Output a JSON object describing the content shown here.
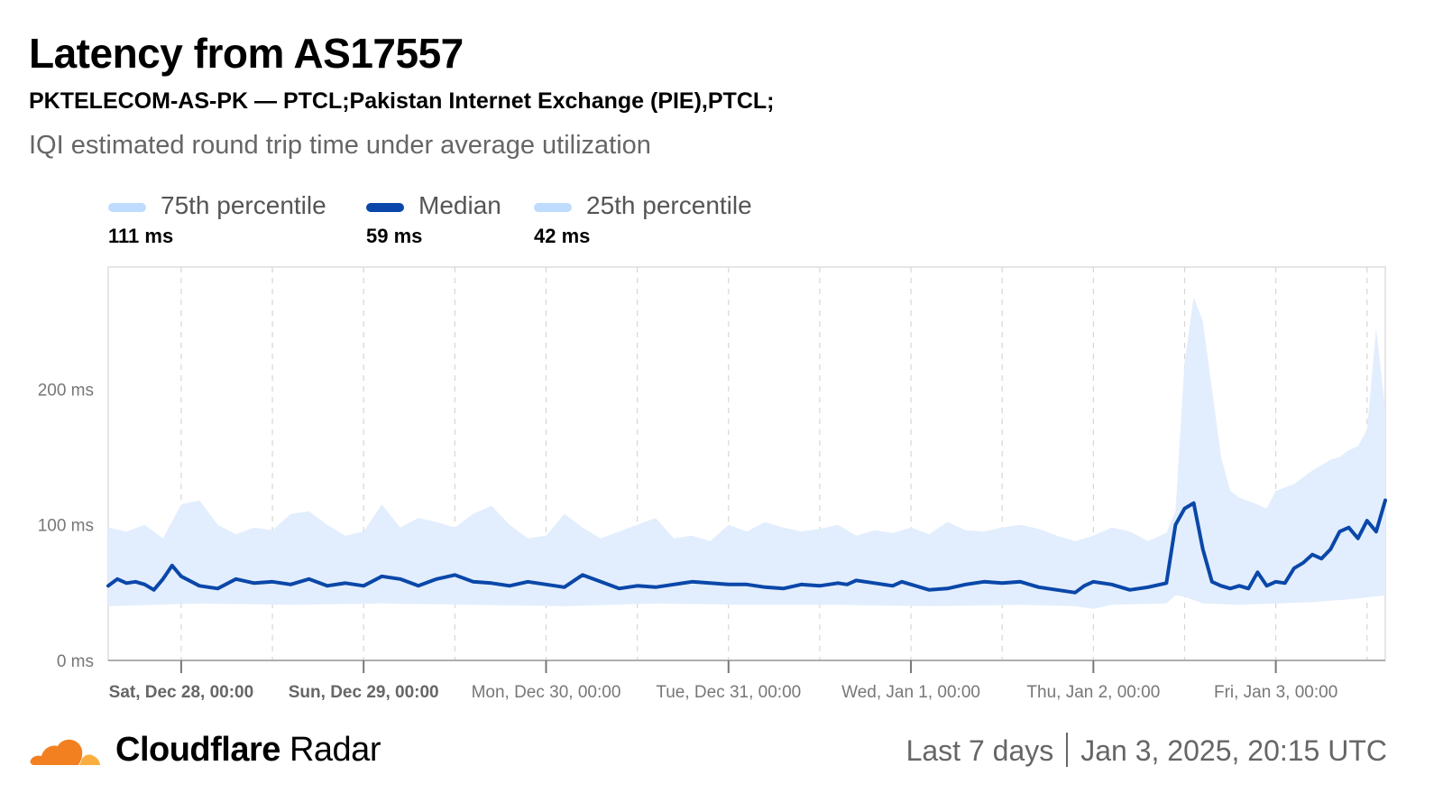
{
  "header": {
    "title": "Latency from AS17557",
    "subtitle": "PKTELECOM-AS-PK — PTCL;Pakistan Internet Exchange (PIE),PTCL;",
    "description": "IQI estimated round trip time under average utilization"
  },
  "legend": [
    {
      "label": "75th percentile",
      "value": "111 ms",
      "color": "#bfdcff"
    },
    {
      "label": "Median",
      "value": "59 ms",
      "color": "#0a47a9"
    },
    {
      "label": "25th percentile",
      "value": "42 ms",
      "color": "#bfdcff"
    }
  ],
  "footer": {
    "brand_bold": "Cloudflare",
    "brand_light": "Radar",
    "range": "Last 7 days",
    "timestamp": "Jan 3, 2025, 20:15 UTC"
  },
  "colors": {
    "band": "#e2eefd",
    "median": "#0a47a9",
    "grid": "#d6d6d6",
    "logo_orange": "#f38020",
    "logo_light": "#faae40"
  },
  "chart_data": {
    "type": "area",
    "unit": "ms",
    "ylim": [
      0,
      290
    ],
    "y_ticks": [
      0,
      100,
      200
    ],
    "y_tick_labels": [
      "0 ms",
      "100 ms",
      "200 ms"
    ],
    "x_ticks": [
      {
        "label": "Sat, Dec 28, 00:00",
        "day": 0.4,
        "bold": true
      },
      {
        "label": "Sun, Dec 29, 00:00",
        "day": 1.4,
        "bold": true
      },
      {
        "label": "Mon, Dec 30, 00:00",
        "day": 2.4,
        "bold": false
      },
      {
        "label": "Tue, Dec 31, 00:00",
        "day": 3.4,
        "bold": false
      },
      {
        "label": "Wed, Jan 1, 00:00",
        "day": 4.4,
        "bold": false
      },
      {
        "label": "Thu, Jan 2, 00:00",
        "day": 5.4,
        "bold": false
      },
      {
        "label": "Fri, Jan 3, 00:00",
        "day": 6.4,
        "bold": false
      }
    ],
    "x_domain_days": [
      0,
      7.0
    ],
    "series": [
      {
        "name": "75th percentile",
        "x": [
          0,
          0.1,
          0.2,
          0.3,
          0.4,
          0.5,
          0.6,
          0.7,
          0.8,
          0.9,
          1.0,
          1.1,
          1.2,
          1.3,
          1.4,
          1.5,
          1.6,
          1.7,
          1.8,
          1.9,
          2.0,
          2.1,
          2.2,
          2.3,
          2.4,
          2.5,
          2.6,
          2.7,
          2.8,
          2.9,
          3.0,
          3.1,
          3.2,
          3.3,
          3.4,
          3.5,
          3.6,
          3.7,
          3.8,
          3.9,
          4.0,
          4.1,
          4.2,
          4.3,
          4.4,
          4.5,
          4.6,
          4.7,
          4.8,
          4.9,
          5.0,
          5.1,
          5.2,
          5.3,
          5.4,
          5.5,
          5.6,
          5.7,
          5.8,
          5.85,
          5.9,
          5.95,
          6.0,
          6.05,
          6.1,
          6.15,
          6.2,
          6.3,
          6.35,
          6.4,
          6.5,
          6.6,
          6.7,
          6.75,
          6.8,
          6.85,
          6.9,
          6.95,
          7.0
        ],
        "values": [
          98,
          95,
          100,
          90,
          115,
          118,
          100,
          93,
          98,
          96,
          108,
          110,
          100,
          92,
          95,
          115,
          98,
          105,
          102,
          98,
          108,
          114,
          100,
          90,
          92,
          108,
          98,
          90,
          95,
          100,
          105,
          90,
          92,
          88,
          100,
          95,
          102,
          98,
          95,
          97,
          100,
          92,
          96,
          94,
          98,
          93,
          102,
          96,
          95,
          98,
          100,
          97,
          92,
          88,
          92,
          98,
          95,
          88,
          94,
          110,
          220,
          268,
          250,
          200,
          150,
          125,
          120,
          115,
          112,
          125,
          130,
          140,
          148,
          150,
          155,
          158,
          170,
          245,
          185
        ]
      },
      {
        "name": "Median",
        "x": [
          0,
          0.05,
          0.1,
          0.15,
          0.2,
          0.25,
          0.3,
          0.35,
          0.4,
          0.5,
          0.6,
          0.7,
          0.8,
          0.9,
          1.0,
          1.1,
          1.2,
          1.3,
          1.4,
          1.5,
          1.6,
          1.7,
          1.8,
          1.9,
          2.0,
          2.1,
          2.2,
          2.3,
          2.4,
          2.5,
          2.6,
          2.7,
          2.8,
          2.9,
          3.0,
          3.1,
          3.2,
          3.3,
          3.4,
          3.5,
          3.6,
          3.7,
          3.8,
          3.9,
          4.0,
          4.05,
          4.1,
          4.2,
          4.3,
          4.35,
          4.4,
          4.5,
          4.6,
          4.7,
          4.8,
          4.9,
          5.0,
          5.1,
          5.2,
          5.3,
          5.35,
          5.4,
          5.5,
          5.6,
          5.7,
          5.8,
          5.85,
          5.9,
          5.95,
          6.0,
          6.05,
          6.1,
          6.15,
          6.2,
          6.25,
          6.3,
          6.35,
          6.4,
          6.45,
          6.5,
          6.55,
          6.6,
          6.65,
          6.7,
          6.75,
          6.8,
          6.85,
          6.9,
          6.95,
          7.0
        ],
        "values": [
          55,
          60,
          57,
          58,
          56,
          52,
          60,
          70,
          62,
          55,
          53,
          60,
          57,
          58,
          56,
          60,
          55,
          57,
          55,
          62,
          60,
          55,
          60,
          63,
          58,
          57,
          55,
          58,
          56,
          54,
          63,
          58,
          53,
          55,
          54,
          56,
          58,
          57,
          56,
          56,
          54,
          53,
          56,
          55,
          57,
          56,
          59,
          57,
          55,
          58,
          56,
          52,
          53,
          56,
          58,
          57,
          58,
          54,
          52,
          50,
          55,
          58,
          56,
          52,
          54,
          57,
          100,
          112,
          116,
          82,
          58,
          55,
          53,
          55,
          53,
          65,
          55,
          58,
          57,
          68,
          72,
          78,
          75,
          82,
          95,
          98,
          90,
          103,
          95,
          118
        ]
      },
      {
        "name": "25th percentile",
        "x": [
          0,
          0.5,
          1.0,
          1.5,
          2.0,
          2.5,
          3.0,
          3.5,
          4.0,
          4.5,
          5.0,
          5.3,
          5.4,
          5.5,
          5.8,
          5.85,
          5.9,
          6.0,
          6.2,
          6.4,
          6.6,
          6.8,
          7.0
        ],
        "values": [
          40,
          42,
          41,
          42,
          41,
          40,
          42,
          41,
          41,
          40,
          41,
          40,
          38,
          41,
          42,
          48,
          47,
          42,
          41,
          42,
          43,
          45,
          48
        ]
      }
    ]
  }
}
